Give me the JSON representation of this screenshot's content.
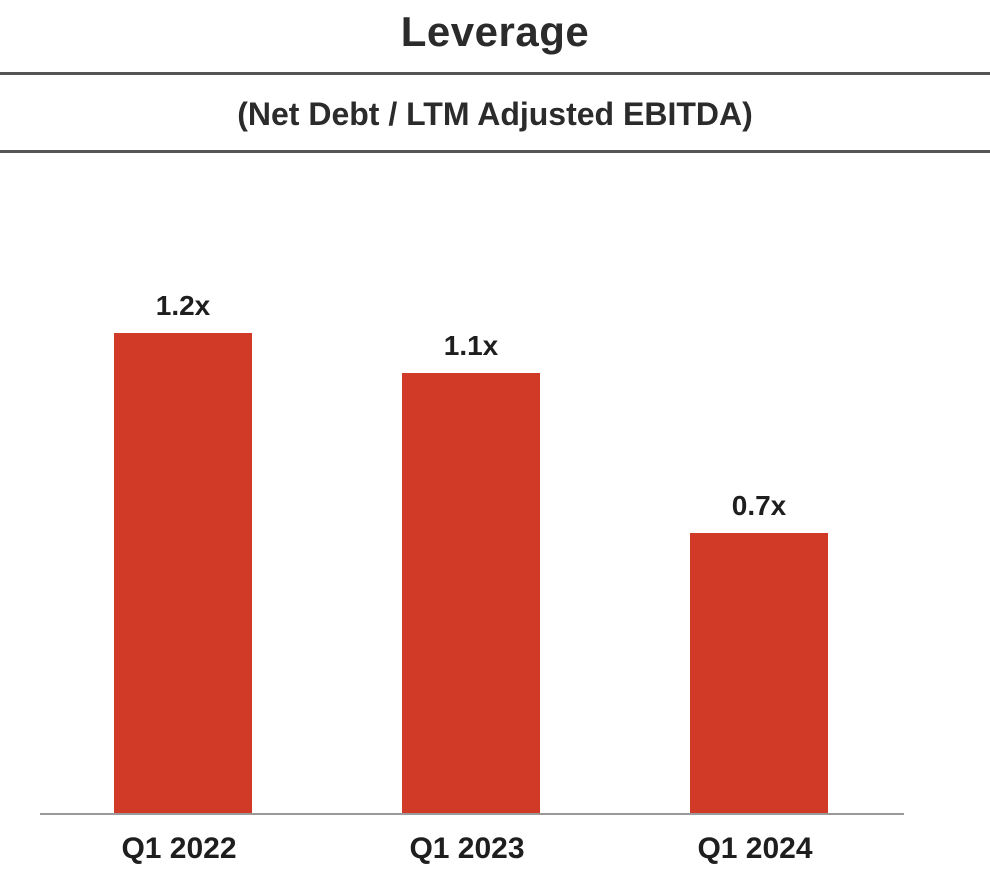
{
  "header": {
    "title": "Leverage",
    "subtitle": "(Net Debt / LTM Adjusted EBITDA)"
  },
  "colors": {
    "bar": "#d03a26",
    "axis": "#9a9a9a",
    "rule": "#555555"
  },
  "chart_data": {
    "type": "bar",
    "title": "Leverage",
    "subtitle": "(Net Debt / LTM Adjusted EBITDA)",
    "xlabel": "",
    "ylabel": "",
    "categories": [
      "Q1 2022",
      "Q1 2023",
      "Q1 2024"
    ],
    "values": [
      1.2,
      1.1,
      0.7
    ],
    "data_labels": [
      "1.2x",
      "1.1x",
      "0.7x"
    ],
    "ylim": [
      0,
      1.2
    ],
    "grid": false,
    "legend": "none"
  }
}
